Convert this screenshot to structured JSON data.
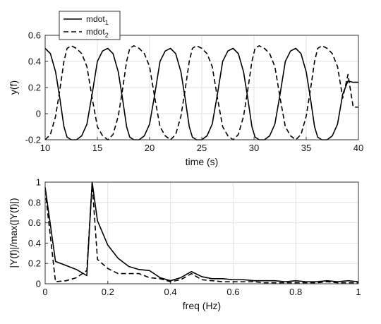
{
  "chart_data": [
    {
      "type": "line",
      "xlabel": "time (s)",
      "ylabel": "y(f)",
      "xlim": [
        10,
        40
      ],
      "ylim": [
        -0.2,
        0.6
      ],
      "xticks": [
        "10",
        "15",
        "20",
        "25",
        "30",
        "35",
        "40"
      ],
      "yticks": [
        "-0.2",
        "0",
        "0.2",
        "0.4",
        "0.6"
      ],
      "grid": true,
      "legend": {
        "placement": "top-left",
        "entries": [
          {
            "base": "mdot",
            "sub": "1"
          },
          {
            "base": "mdot",
            "sub": "2"
          }
        ]
      },
      "series": [
        {
          "name": "mdot1",
          "style": "solid",
          "color": "#000000",
          "x": [
            10,
            10.5,
            11,
            11.4,
            11.8,
            12.1,
            12.5,
            13,
            13.5,
            14,
            14.5,
            15,
            15.5,
            16,
            16.5,
            17,
            17.4,
            17.8,
            18.1,
            18.5,
            19,
            19.5,
            20,
            20.5,
            21,
            21.5,
            22,
            22.5,
            23,
            23.4,
            23.8,
            24.1,
            24.5,
            25,
            25.5,
            26,
            26.5,
            27,
            27.5,
            28,
            28.5,
            29,
            29.4,
            29.8,
            30.1,
            30.5,
            31,
            31.5,
            32,
            32.5,
            33,
            33.5,
            34,
            34.5,
            35,
            35.4,
            35.8,
            36.1,
            36.5,
            37,
            37.5,
            38,
            38.5,
            39,
            39.5,
            40
          ],
          "y": [
            0.5,
            0.46,
            0.32,
            0.12,
            -0.1,
            -0.18,
            -0.2,
            -0.2,
            -0.17,
            -0.08,
            0.15,
            0.4,
            0.48,
            0.5,
            0.46,
            0.32,
            0.12,
            -0.1,
            -0.18,
            -0.2,
            -0.2,
            -0.17,
            -0.08,
            0.15,
            0.4,
            0.48,
            0.5,
            0.46,
            0.32,
            0.12,
            -0.1,
            -0.18,
            -0.2,
            -0.2,
            -0.17,
            -0.08,
            0.15,
            0.4,
            0.48,
            0.5,
            0.46,
            0.32,
            0.12,
            -0.1,
            -0.18,
            -0.2,
            -0.2,
            -0.17,
            -0.08,
            0.15,
            0.4,
            0.48,
            0.5,
            0.46,
            0.32,
            0.12,
            -0.1,
            -0.18,
            -0.2,
            -0.2,
            -0.17,
            -0.08,
            0.15,
            0.25,
            0.24,
            0.24
          ]
        },
        {
          "name": "mdot2",
          "style": "dashed",
          "color": "#000000",
          "x": [
            10,
            10.5,
            11,
            11.4,
            11.8,
            12.1,
            12.5,
            13,
            13.5,
            14,
            14.5,
            15,
            15.5,
            16,
            16.5,
            17,
            17.4,
            17.8,
            18.1,
            18.5,
            19,
            19.5,
            20,
            20.5,
            21,
            21.5,
            22,
            22.5,
            23,
            23.4,
            23.8,
            24.1,
            24.5,
            25,
            25.5,
            26,
            26.5,
            27,
            27.5,
            28,
            28.5,
            29,
            29.4,
            29.8,
            30.1,
            30.5,
            31,
            31.5,
            32,
            32.5,
            33,
            33.5,
            34,
            34.5,
            35,
            35.4,
            35.8,
            36.1,
            36.5,
            37,
            37.5,
            38,
            38.5,
            39,
            39.5,
            40
          ],
          "y": [
            -0.2,
            -0.16,
            -0.02,
            0.18,
            0.4,
            0.5,
            0.52,
            0.5,
            0.46,
            0.36,
            0.12,
            -0.1,
            -0.17,
            -0.2,
            -0.16,
            -0.02,
            0.18,
            0.4,
            0.5,
            0.52,
            0.5,
            0.46,
            0.36,
            0.12,
            -0.1,
            -0.17,
            -0.2,
            -0.16,
            -0.02,
            0.18,
            0.4,
            0.5,
            0.52,
            0.5,
            0.46,
            0.36,
            0.12,
            -0.1,
            -0.17,
            -0.2,
            -0.16,
            -0.02,
            0.18,
            0.4,
            0.5,
            0.52,
            0.5,
            0.46,
            0.36,
            0.12,
            -0.1,
            -0.17,
            -0.2,
            -0.16,
            -0.02,
            0.18,
            0.4,
            0.5,
            0.52,
            0.5,
            0.46,
            0.36,
            0.12,
            0.3,
            0.05,
            0.05
          ]
        }
      ]
    },
    {
      "type": "line",
      "xlabel": "freq (Hz)",
      "ylabel": "|Y(f)|/max(|Y(f)|)",
      "xlim": [
        0,
        1
      ],
      "ylim": [
        0,
        1
      ],
      "xticks": [
        "0",
        "0.2",
        "0.4",
        "0.6",
        "0.8",
        "1"
      ],
      "yticks": [
        "0",
        "0.2",
        "0.4",
        "0.6",
        "0.8",
        "1"
      ],
      "grid": true,
      "series": [
        {
          "name": "mdot1",
          "style": "solid",
          "color": "#000000",
          "x": [
            0,
            0.033,
            0.067,
            0.1,
            0.133,
            0.15,
            0.167,
            0.2,
            0.233,
            0.267,
            0.3,
            0.333,
            0.367,
            0.4,
            0.433,
            0.467,
            0.5,
            0.533,
            0.567,
            0.6,
            0.633,
            0.667,
            0.7,
            0.733,
            0.767,
            0.8,
            0.833,
            0.867,
            0.9,
            0.933,
            0.967,
            1
          ],
          "y": [
            0.95,
            0.22,
            0.18,
            0.14,
            0.08,
            1.0,
            0.62,
            0.38,
            0.25,
            0.17,
            0.14,
            0.13,
            0.06,
            0.03,
            0.06,
            0.12,
            0.07,
            0.05,
            0.05,
            0.04,
            0.04,
            0.03,
            0.03,
            0.03,
            0.02,
            0.03,
            0.02,
            0.02,
            0.03,
            0.02,
            0.03,
            0.02
          ]
        },
        {
          "name": "mdot2",
          "style": "dashed",
          "color": "#000000",
          "x": [
            0,
            0.033,
            0.067,
            0.1,
            0.133,
            0.15,
            0.167,
            0.2,
            0.233,
            0.267,
            0.3,
            0.333,
            0.367,
            0.4,
            0.433,
            0.467,
            0.5,
            0.533,
            0.567,
            0.6,
            0.633,
            0.667,
            0.7,
            0.733,
            0.767,
            0.8,
            0.833,
            0.867,
            0.9,
            0.933,
            0.967,
            1
          ],
          "y": [
            0.92,
            0.02,
            0.03,
            0.06,
            0.13,
            0.99,
            0.24,
            0.15,
            0.1,
            0.1,
            0.1,
            0.06,
            0.05,
            0.02,
            0.04,
            0.1,
            0.04,
            0.03,
            0.02,
            0.02,
            0.02,
            0.02,
            0.01,
            0.01,
            0.01,
            0.01,
            0.01,
            0.01,
            0.02,
            0.01,
            0.01,
            0.01
          ]
        }
      ]
    }
  ]
}
